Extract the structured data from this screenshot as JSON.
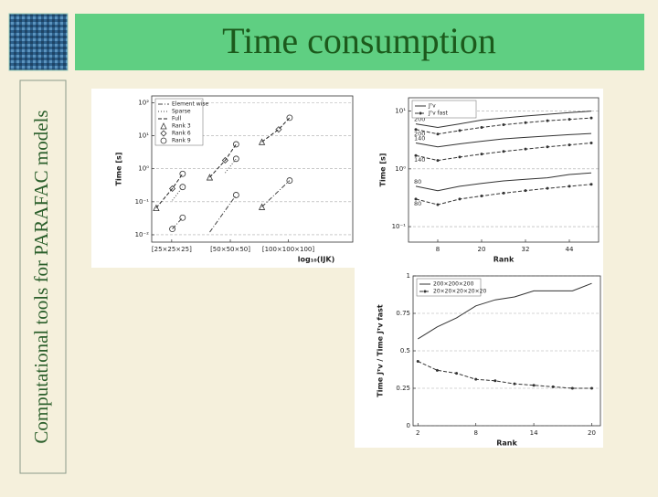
{
  "slide": {
    "title": "Time consumption",
    "side_title": "Computational tools for PARAFAC models"
  },
  "chart_data": [
    {
      "type": "line",
      "log": true,
      "grid": true,
      "legend": "upper left",
      "ylabel": "Time [s]",
      "xlabel": "log₁₀(IJK)",
      "xlim": [
        3.88,
        7.0
      ],
      "ylim": [
        0.006,
        160
      ],
      "xticks": [
        {
          "value": 4.19,
          "label": "[25×25×25]"
        },
        {
          "value": 5.1,
          "label": "[50×50×50]"
        },
        {
          "value": 6.0,
          "label": "[100×100×100]"
        }
      ],
      "yticks": [
        {
          "value": 0.01,
          "label": "10⁻²"
        },
        {
          "value": 0.1,
          "label": "10⁻¹"
        },
        {
          "value": 1,
          "label": "10⁰"
        },
        {
          "value": 10,
          "label": "10¹"
        },
        {
          "value": 100,
          "label": "10²"
        }
      ],
      "series": [
        {
          "name": "Element wise",
          "color": "#444444",
          "line": "dashdot",
          "x": [
            4.2,
            4.36,
            null,
            4.78,
            5.19,
            null,
            5.59,
            6.02
          ],
          "values": [
            0.015,
            0.033,
            null,
            0.012,
            0.16,
            null,
            0.07,
            0.44
          ]
        },
        {
          "name": "Sparse",
          "color": "#444444",
          "line": "dotted",
          "x": [
            4.2,
            4.36,
            null,
            5.02,
            5.19
          ],
          "values": [
            0.11,
            0.28,
            null,
            0.75,
            2.0
          ]
        },
        {
          "name": "Full",
          "color": "#222222",
          "line": "dashed",
          "x": [
            3.95,
            4.2,
            4.36,
            null,
            4.78,
            5.02,
            5.19,
            null,
            5.59,
            5.85,
            6.02
          ],
          "values": [
            0.065,
            0.25,
            0.7,
            null,
            0.55,
            1.8,
            5.5,
            null,
            6.5,
            15.5,
            35
          ]
        },
        {
          "name": "Rank 3",
          "color": "#333333",
          "line": "none",
          "marker": "triangle",
          "x": [
            3.95,
            4.78,
            5.59,
            5.59
          ],
          "values": [
            0.065,
            0.55,
            6.5,
            0.07
          ]
        },
        {
          "name": "Rank 6",
          "color": "#333333",
          "line": "none",
          "marker": "diamond",
          "x": [
            4.2,
            5.02,
            5.85
          ],
          "values": [
            0.25,
            1.8,
            15.5
          ]
        },
        {
          "name": "Rank 9",
          "color": "#333333",
          "line": "none",
          "marker": "circle",
          "x": [
            4.36,
            4.36,
            4.2,
            4.36,
            5.19,
            5.19,
            5.19,
            6.02,
            6.02
          ],
          "values": [
            0.7,
            0.28,
            0.015,
            0.033,
            5.5,
            2.0,
            0.16,
            35,
            0.44
          ]
        }
      ]
    },
    {
      "type": "line",
      "log": true,
      "grid": true,
      "legend": "upper left",
      "ylabel": "Time [s]",
      "xlabel": "Rank",
      "xlim": [
        0,
        52
      ],
      "ylim": [
        0.054,
        17
      ],
      "xticks": [
        8,
        20,
        32,
        44
      ],
      "yticks": [
        {
          "value": 0.1,
          "label": "10⁻¹"
        },
        {
          "value": 1,
          "label": "10⁰"
        },
        {
          "value": 10,
          "label": "10¹"
        }
      ],
      "x": [
        2,
        8,
        14,
        20,
        26,
        32,
        38,
        44,
        50
      ],
      "series": [
        {
          "name": "Jᵀv",
          "color": "#333333",
          "line": "solid",
          "curves": [
            {
              "label": "200",
              "values": [
                6.0,
                5.2,
                6.0,
                7.0,
                7.6,
                8.2,
                8.8,
                9.4,
                10
              ]
            },
            {
              "label": "140",
              "values": [
                2.8,
                2.4,
                2.7,
                3.0,
                3.3,
                3.5,
                3.7,
                3.9,
                4.1
              ]
            },
            {
              "label": "80",
              "values": [
                0.5,
                0.42,
                0.5,
                0.56,
                0.62,
                0.66,
                0.7,
                0.8,
                0.85
              ]
            }
          ]
        },
        {
          "name": "Jᵀv fast",
          "color": "#333333",
          "line": "dashed",
          "marker": "dot",
          "curves": [
            {
              "label": "200",
              "values": [
                4.8,
                4.0,
                4.6,
                5.2,
                5.8,
                6.3,
                6.8,
                7.2,
                7.6
              ]
            },
            {
              "label": "140",
              "values": [
                1.7,
                1.4,
                1.6,
                1.8,
                2.0,
                2.2,
                2.4,
                2.6,
                2.8
              ]
            },
            {
              "label": "80",
              "values": [
                0.3,
                0.24,
                0.3,
                0.34,
                0.38,
                0.42,
                0.46,
                0.5,
                0.54
              ]
            }
          ]
        }
      ]
    },
    {
      "type": "line",
      "log": false,
      "grid": true,
      "legend": "upper left",
      "ylabel": "Time Jᵀv / Time Jᵀv fast",
      "xlabel": "Rank",
      "xlim": [
        1.5,
        20.9
      ],
      "ylim": [
        0,
        1
      ],
      "xticks": [
        2,
        8,
        14,
        20
      ],
      "yticks": [
        0,
        0.25,
        0.5,
        0.75,
        1
      ],
      "x": [
        2,
        4,
        6,
        8,
        10,
        12,
        14,
        16,
        18,
        20
      ],
      "series": [
        {
          "name": "200×200×200",
          "color": "#333333",
          "line": "solid",
          "values": [
            0.58,
            0.66,
            0.72,
            0.8,
            0.84,
            0.86,
            0.9,
            0.9,
            0.9,
            0.95
          ]
        },
        {
          "name": "20×20×20×20×20",
          "color": "#333333",
          "line": "dashed",
          "marker": "dot",
          "values": [
            0.43,
            0.37,
            0.35,
            0.31,
            0.3,
            0.28,
            0.27,
            0.26,
            0.25,
            0.25
          ]
        }
      ]
    }
  ]
}
